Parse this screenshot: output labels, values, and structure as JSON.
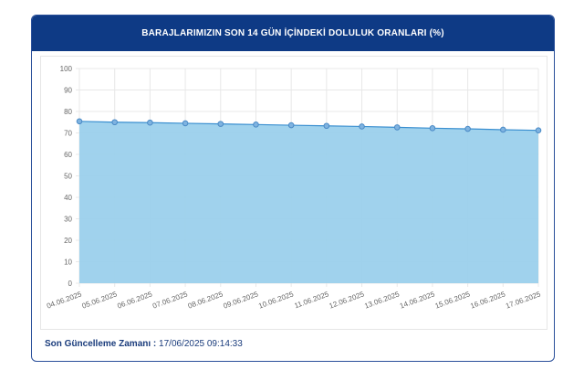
{
  "header": {
    "title": "BARAJLARIMIZIN SON 14 GÜN İÇİNDEKİ DOLULUK ORANLARI (%)"
  },
  "footer": {
    "label": "Son Güncelleme Zamanı :",
    "value": "17/06/2025 09:14:33"
  },
  "colors": {
    "header": "#0e3a85",
    "area": "#9bd0ec",
    "line": "#3a8fd0",
    "point": "#4a8ac6"
  },
  "chart_data": {
    "type": "area",
    "title": "BARAJLARIMIZIN SON 14 GÜN İÇİNDEKİ DOLULUK ORANLARI (%)",
    "categories": [
      "04.06.2025",
      "05.06.2025",
      "06.06.2025",
      "07.06.2025",
      "08.06.2025",
      "09.06.2025",
      "10.06.2025",
      "11.06.2025",
      "12.06.2025",
      "13.06.2025",
      "14.06.2025",
      "15.06.2025",
      "16.06.2025",
      "17.06.2025"
    ],
    "values": [
      75.4,
      75.0,
      74.8,
      74.5,
      74.2,
      73.9,
      73.6,
      73.3,
      73.0,
      72.6,
      72.2,
      71.9,
      71.5,
      71.2
    ],
    "ylim": [
      0,
      100
    ],
    "yticks": [
      0,
      10,
      20,
      30,
      40,
      50,
      60,
      70,
      80,
      90,
      100
    ],
    "grid": true,
    "legend": "none"
  }
}
